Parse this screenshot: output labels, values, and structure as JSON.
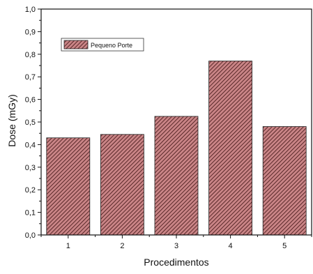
{
  "chart_data": {
    "type": "bar",
    "categories": [
      "1",
      "2",
      "3",
      "4",
      "5"
    ],
    "series": [
      {
        "name": "Pequeno Porte",
        "values": [
          0.43,
          0.445,
          0.525,
          0.77,
          0.48
        ]
      }
    ],
    "xlabel": "Procedimentos",
    "ylabel": "Dose (mGy)",
    "ylim": [
      0,
      1.0
    ],
    "yticks": [
      "0,0",
      "0,1",
      "0,2",
      "0,3",
      "0,4",
      "0,5",
      "0,6",
      "0,7",
      "0,8",
      "0,9",
      "1,0"
    ],
    "grid": false,
    "legend_position": "top-left",
    "colors": {
      "bar_fill": "#c98486",
      "bar_hatch": "#3d1212",
      "axis": "#111111"
    }
  }
}
